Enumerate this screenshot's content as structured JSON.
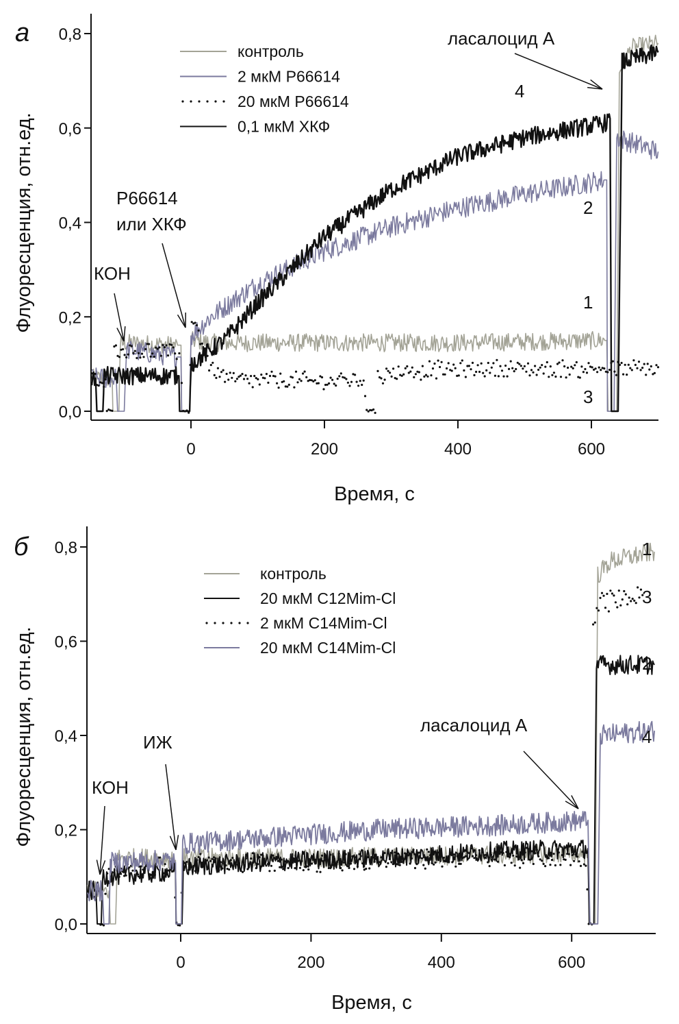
{
  "chart_data": [
    {
      "type": "line",
      "panel_label": "а",
      "xlabel": "Время, с",
      "ylabel": "Флуоресценция, отн.ед.",
      "xlim": [
        -150,
        700
      ],
      "ylim": [
        -0.02,
        0.85
      ],
      "xticks": [
        0,
        200,
        400,
        600
      ],
      "xtick_labels": [
        "0",
        "200",
        "400",
        "600"
      ],
      "yticks": [
        0.0,
        0.2,
        0.4,
        0.6,
        0.8
      ],
      "ytick_labels": [
        "0,0",
        "0,2",
        "0,4",
        "0,6",
        "0,8"
      ],
      "grid": false,
      "legend_position": "top-left",
      "legend": [
        {
          "label": "контроль",
          "style": "solid",
          "color": "#a3a396"
        },
        {
          "label": "2 мкМ Р66614",
          "style": "solid",
          "color": "#7b7a9e"
        },
        {
          "label": "20 мкМ Р66614",
          "style": "dotted",
          "color": "#111111"
        },
        {
          "label": "0,1 мкМ ХКФ",
          "style": "solid",
          "color": "#111111"
        }
      ],
      "annotations": [
        {
          "text": "КОН",
          "x": -105,
          "y": 0.145
        },
        {
          "text": "Р66614",
          "text2": "или ХКФ",
          "x": -5,
          "y": 0.17
        },
        {
          "text": "ласалоцид А",
          "x": 628,
          "y": 0.68
        }
      ],
      "curve_labels": [
        {
          "text": "1",
          "x": 593,
          "y": 0.225
        },
        {
          "text": "2",
          "x": 593,
          "y": 0.42
        },
        {
          "text": "3",
          "x": 593,
          "y": 0.01
        },
        {
          "text": "4",
          "x": 493,
          "y": 0.66
        }
      ],
      "series": [
        {
          "name": "контроль",
          "curve": "1",
          "color": "#a3a396",
          "style": "solid",
          "width": 1.6,
          "noise": 0.012,
          "points": [
            [
              -150,
              0.07
            ],
            [
              -118,
              0.07
            ],
            [
              -117,
              0.0
            ],
            [
              -108,
              0.0
            ],
            [
              -106,
              0.14
            ],
            [
              -100,
              0.145
            ],
            [
              -20,
              0.14
            ],
            [
              -15,
              0.14
            ],
            [
              -14,
              0.0
            ],
            [
              -2,
              0.0
            ],
            [
              0,
              0.15
            ],
            [
              30,
              0.145
            ],
            [
              200,
              0.145
            ],
            [
              400,
              0.145
            ],
            [
              620,
              0.15
            ],
            [
              623,
              0.15
            ],
            [
              625,
              0.0
            ],
            [
              638,
              0.0
            ],
            [
              642,
              0.72
            ],
            [
              660,
              0.77
            ],
            [
              700,
              0.78
            ]
          ]
        },
        {
          "name": "2 мкМ Р66614",
          "curve": "2",
          "color": "#7b7a9e",
          "style": "solid",
          "width": 1.6,
          "noise": 0.014,
          "points": [
            [
              -150,
              0.07
            ],
            [
              -112,
              0.07
            ],
            [
              -110,
              0.0
            ],
            [
              -100,
              0.0
            ],
            [
              -97,
              0.13
            ],
            [
              -20,
              0.115
            ],
            [
              -15,
              0.115
            ],
            [
              -14,
              0.0
            ],
            [
              -2,
              0.0
            ],
            [
              0,
              0.16
            ],
            [
              30,
              0.2
            ],
            [
              100,
              0.27
            ],
            [
              200,
              0.34
            ],
            [
              300,
              0.39
            ],
            [
              400,
              0.43
            ],
            [
              500,
              0.46
            ],
            [
              620,
              0.49
            ],
            [
              623,
              0.49
            ],
            [
              624,
              0.0
            ],
            [
              634,
              0.0
            ],
            [
              638,
              0.58
            ],
            [
              700,
              0.55
            ]
          ]
        },
        {
          "name": "20 мкМ Р66614",
          "curve": "3",
          "color": "#111111",
          "style": "dotted",
          "width": 2.2,
          "noise": 0.01,
          "points": [
            [
              -150,
              0.07
            ],
            [
              -128,
              0.07
            ],
            [
              -126,
              0.0
            ],
            [
              -118,
              0.0
            ],
            [
              -115,
              0.13
            ],
            [
              -20,
              0.125
            ],
            [
              -15,
              0.12
            ],
            [
              -13,
              0.0
            ],
            [
              -2,
              0.0
            ],
            [
              0,
              0.2
            ],
            [
              10,
              0.17
            ],
            [
              30,
              0.09
            ],
            [
              60,
              0.065
            ],
            [
              260,
              0.065
            ],
            [
              262,
              0.0
            ],
            [
              276,
              0.0
            ],
            [
              280,
              0.07
            ],
            [
              320,
              0.085
            ],
            [
              400,
              0.09
            ],
            [
              640,
              0.09
            ],
            [
              700,
              0.09
            ]
          ]
        },
        {
          "name": "0,1 мкМ ХКФ",
          "curve": "4",
          "color": "#111111",
          "style": "solid",
          "width": 2.4,
          "noise": 0.012,
          "points": [
            [
              -150,
              0.07
            ],
            [
              -143,
              0.07
            ],
            [
              -141,
              0.0
            ],
            [
              -132,
              0.0
            ],
            [
              -130,
              0.075
            ],
            [
              -20,
              0.075
            ],
            [
              -18,
              0.075
            ],
            [
              -17,
              0.0
            ],
            [
              -2,
              0.0
            ],
            [
              0,
              0.1
            ],
            [
              50,
              0.15
            ],
            [
              100,
              0.23
            ],
            [
              200,
              0.37
            ],
            [
              300,
              0.47
            ],
            [
              400,
              0.54
            ],
            [
              500,
              0.58
            ],
            [
              620,
              0.61
            ],
            [
              628,
              0.62
            ],
            [
              630,
              0.0
            ],
            [
              640,
              0.0
            ],
            [
              646,
              0.74
            ],
            [
              700,
              0.76
            ]
          ]
        }
      ]
    },
    {
      "type": "line",
      "panel_label": "б",
      "xlabel": "Время, с",
      "ylabel": "Флуоресценция, отн.ед.",
      "xlim": [
        -143,
        727
      ],
      "ylim": [
        -0.02,
        0.86
      ],
      "xticks": [
        0,
        200,
        400,
        600
      ],
      "xtick_labels": [
        "0",
        "200",
        "400",
        "600"
      ],
      "yticks": [
        0.0,
        0.2,
        0.4,
        0.6,
        0.8
      ],
      "ytick_labels": [
        "0,0",
        "0,2",
        "0,4",
        "0,6",
        "0,8"
      ],
      "grid": false,
      "legend_position": "top-center",
      "legend": [
        {
          "label": "контроль",
          "style": "solid",
          "color": "#a3a396"
        },
        {
          "label": "20 мкМ C12Mim-Cl",
          "style": "solid",
          "color": "#111111"
        },
        {
          "label": "2 мкМ C14Mim-Cl",
          "style": "dotted",
          "color": "#111111"
        },
        {
          "label": "20 мкМ C14Mim-Cl",
          "style": "solid",
          "color": "#7b7a9e"
        }
      ],
      "annotations": [
        {
          "text": "КОН",
          "x": -118,
          "y": 0.12
        },
        {
          "text": "ИЖ",
          "x": -3,
          "y": 0.17
        },
        {
          "text": "ласалоцид А",
          "x": 630,
          "y": 0.25
        }
      ],
      "curve_labels": [
        {
          "text": "1",
          "x": 705,
          "y": 0.8
        },
        {
          "text": "2",
          "x": 705,
          "y": 0.555
        },
        {
          "text": "3",
          "x": 705,
          "y": 0.69
        },
        {
          "text": "4",
          "x": 705,
          "y": 0.405
        }
      ],
      "series": [
        {
          "name": "контроль",
          "curve": "1",
          "color": "#a3a396",
          "style": "solid",
          "width": 1.6,
          "noise": 0.013,
          "points": [
            [
              -143,
              0.07
            ],
            [
              -110,
              0.07
            ],
            [
              -108,
              0.0
            ],
            [
              -100,
              0.0
            ],
            [
              -97,
              0.14
            ],
            [
              -20,
              0.14
            ],
            [
              -8,
              0.135
            ],
            [
              -7,
              0.0
            ],
            [
              2,
              0.0
            ],
            [
              4,
              0.14
            ],
            [
              200,
              0.14
            ],
            [
              400,
              0.145
            ],
            [
              625,
              0.15
            ],
            [
              628,
              0.0
            ],
            [
              636,
              0.0
            ],
            [
              640,
              0.74
            ],
            [
              660,
              0.77
            ],
            [
              727,
              0.79
            ]
          ]
        },
        {
          "name": "20 мкМ C12Mim-Cl",
          "curve": "2",
          "color": "#111111",
          "style": "solid",
          "width": 2.0,
          "noise": 0.013,
          "points": [
            [
              -143,
              0.07
            ],
            [
              -130,
              0.07
            ],
            [
              -128,
              0.0
            ],
            [
              -122,
              0.0
            ],
            [
              -120,
              0.1
            ],
            [
              -20,
              0.11
            ],
            [
              -8,
              0.11
            ],
            [
              -7,
              0.0
            ],
            [
              2,
              0.0
            ],
            [
              4,
              0.12
            ],
            [
              100,
              0.13
            ],
            [
              300,
              0.14
            ],
            [
              500,
              0.155
            ],
            [
              625,
              0.16
            ],
            [
              627,
              0.0
            ],
            [
              634,
              0.0
            ],
            [
              638,
              0.55
            ],
            [
              727,
              0.55
            ]
          ]
        },
        {
          "name": "2 мкМ C14Mim-Cl",
          "curve": "3",
          "color": "#111111",
          "style": "dotted",
          "width": 2.2,
          "noise": 0.012,
          "points": [
            [
              -143,
              0.07
            ],
            [
              -125,
              0.07
            ],
            [
              -123,
              0.0
            ],
            [
              -117,
              0.0
            ],
            [
              -114,
              0.12
            ],
            [
              -20,
              0.12
            ],
            [
              -9,
              0.12
            ],
            [
              -8,
              0.0
            ],
            [
              0,
              0.0
            ],
            [
              3,
              0.13
            ],
            [
              200,
              0.13
            ],
            [
              400,
              0.14
            ],
            [
              623,
              0.14
            ],
            [
              625,
              0.0
            ],
            [
              631,
              0.0
            ],
            [
              633,
              0.62
            ],
            [
              640,
              0.68
            ],
            [
              700,
              0.7
            ],
            [
              710,
              0.7
            ]
          ]
        },
        {
          "name": "20 мкМ C14Mim-Cl",
          "curve": "4",
          "color": "#7b7a9e",
          "style": "solid",
          "width": 1.8,
          "noise": 0.014,
          "points": [
            [
              -143,
              0.07
            ],
            [
              -120,
              0.07
            ],
            [
              -118,
              0.0
            ],
            [
              -110,
              0.0
            ],
            [
              -108,
              0.13
            ],
            [
              -20,
              0.135
            ],
            [
              -8,
              0.13
            ],
            [
              -7,
              0.0
            ],
            [
              1,
              0.0
            ],
            [
              3,
              0.17
            ],
            [
              100,
              0.18
            ],
            [
              300,
              0.2
            ],
            [
              500,
              0.21
            ],
            [
              625,
              0.22
            ],
            [
              628,
              0.0
            ],
            [
              640,
              0.0
            ],
            [
              644,
              0.4
            ],
            [
              727,
              0.41
            ]
          ]
        }
      ]
    }
  ]
}
